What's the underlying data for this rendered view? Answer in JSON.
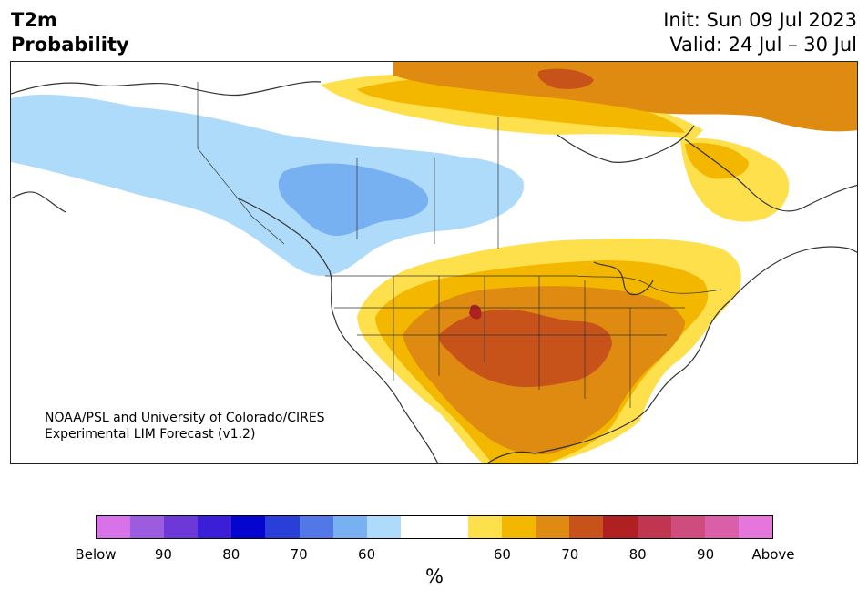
{
  "header": {
    "title_line1": "T2m",
    "title_line2": "Probability",
    "init_text": "Init: Sun 09 Jul 2023",
    "valid_text": "Valid: 24 Jul – 30 Jul"
  },
  "credit": {
    "line1": "NOAA/PSL and University of Colorado/CIRES",
    "line2": "Experimental LIM Forecast (v1.2)"
  },
  "colorbar": {
    "colors": [
      "#d872e8",
      "#9c5ce0",
      "#6c38d8",
      "#3a1fd6",
      "#0505d0",
      "#2a3ed8",
      "#5277e6",
      "#78b1f2",
      "#aedbfa",
      "#ffffff",
      "#ffffff",
      "#fde04c",
      "#f3b700",
      "#df8a10",
      "#c8531a",
      "#b02020",
      "#c03550",
      "#cf4c7e",
      "#da5ea8",
      "#e776dc"
    ],
    "tick_labels": [
      "Below",
      "90",
      "80",
      "70",
      "60",
      "60",
      "70",
      "80",
      "90",
      "Above"
    ],
    "unit_label": "%"
  },
  "map_colors": {
    "land": "#ffffff",
    "coast": "#333333",
    "light_blue": "#aedbfa",
    "mid_blue": "#78b1f2",
    "yellow": "#fde04c",
    "gold": "#f3b700",
    "orange": "#df8a10",
    "dark_orange": "#c8531a",
    "red": "#b02020"
  }
}
